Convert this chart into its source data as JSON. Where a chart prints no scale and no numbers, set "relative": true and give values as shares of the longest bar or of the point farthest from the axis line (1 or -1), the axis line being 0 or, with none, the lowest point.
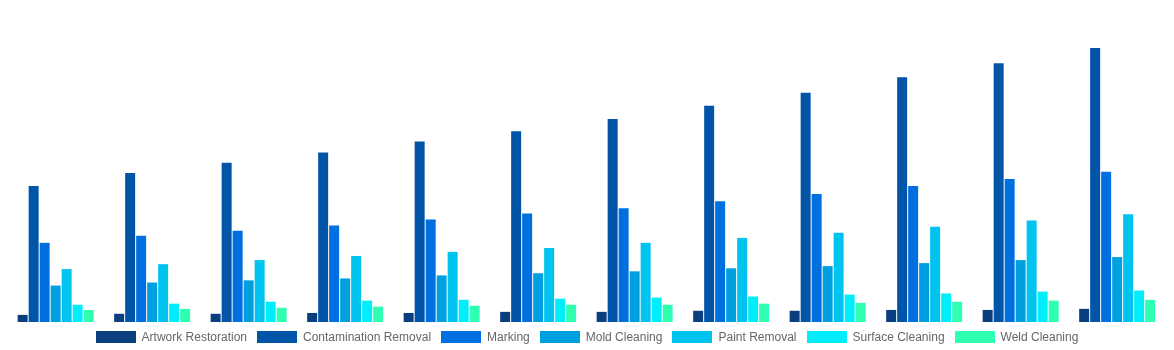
{
  "chart_data": {
    "type": "bar",
    "relative": true,
    "legend": "bottom",
    "grid": false,
    "categories": [
      null,
      null,
      null,
      null,
      null,
      null,
      null,
      null,
      null,
      null,
      null,
      null
    ],
    "series": [
      {
        "name": "Artwork Restoration",
        "color": "#0a3f7f",
        "values": [
          0.026,
          0.03,
          0.03,
          0.033,
          0.033,
          0.037,
          0.037,
          0.041,
          0.041,
          0.044,
          0.044,
          0.048
        ]
      },
      {
        "name": "Contamination Removal",
        "color": "#0055a8",
        "values": [
          0.496,
          0.544,
          0.581,
          0.619,
          0.659,
          0.696,
          0.741,
          0.789,
          0.837,
          0.893,
          0.944,
          1
        ]
      },
      {
        "name": "Marking",
        "color": "#0070e0",
        "values": [
          0.289,
          0.315,
          0.333,
          0.352,
          0.374,
          0.396,
          0.415,
          0.441,
          0.467,
          0.496,
          0.522,
          0.548
        ]
      },
      {
        "name": "Mold Cleaning",
        "color": "#00a0e0",
        "values": [
          0.133,
          0.144,
          0.152,
          0.159,
          0.17,
          0.178,
          0.185,
          0.196,
          0.204,
          0.215,
          0.226,
          0.237
        ]
      },
      {
        "name": "Paint Removal",
        "color": "#00c3f0",
        "values": [
          0.193,
          0.211,
          0.226,
          0.241,
          0.256,
          0.27,
          0.289,
          0.307,
          0.326,
          0.348,
          0.37,
          0.393
        ]
      },
      {
        "name": "Surface Cleaning",
        "color": "#00eefa",
        "values": [
          0.063,
          0.067,
          0.074,
          0.078,
          0.081,
          0.085,
          0.089,
          0.093,
          0.1,
          0.104,
          0.111,
          0.115
        ]
      },
      {
        "name": "Weld Cleaning",
        "color": "#2effb0",
        "values": [
          0.044,
          0.048,
          0.052,
          0.056,
          0.059,
          0.063,
          0.063,
          0.067,
          0.07,
          0.074,
          0.078,
          0.081
        ]
      }
    ]
  }
}
